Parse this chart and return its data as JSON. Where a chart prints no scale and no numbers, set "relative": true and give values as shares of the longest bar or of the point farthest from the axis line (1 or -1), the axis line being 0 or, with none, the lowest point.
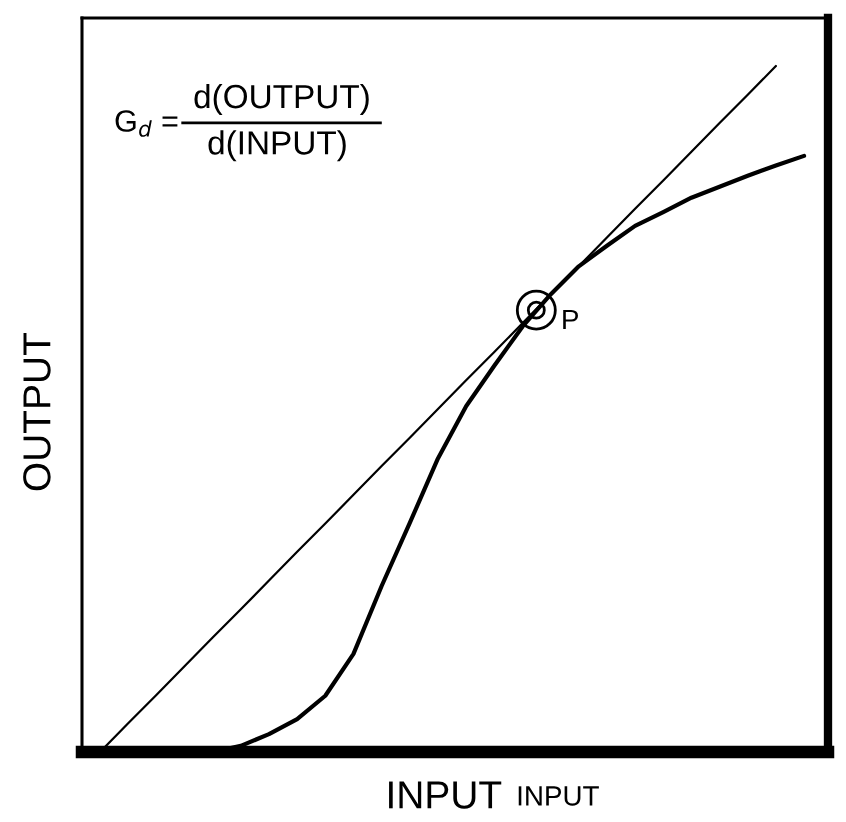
{
  "chart_data": {
    "type": "line",
    "relative": true,
    "xlabel": "INPUT",
    "ylabel": "OUTPUT",
    "categories": [
      null,
      null,
      null,
      null,
      null,
      null,
      null,
      null,
      null,
      null,
      null,
      null,
      null,
      null,
      null,
      null,
      null,
      null,
      null,
      null,
      null,
      null,
      null,
      null,
      null,
      null
    ],
    "series": [
      {
        "color": "#000000",
        "values": [
          0,
          0.042,
          0.083,
          0.125,
          0.167,
          0.208,
          0.25,
          0.292,
          0.333,
          0.375,
          0.417,
          0.458,
          0.5,
          0.542,
          0.583,
          0.625,
          0.667,
          0.708,
          0.75,
          0.792,
          0.833,
          0.875,
          0.917,
          0.958,
          1,
          null
        ]
      },
      {
        "color": "#000000",
        "values": [
          null,
          null,
          null,
          null,
          0,
          0.009,
          0.026,
          0.048,
          0.082,
          0.143,
          0.242,
          0.334,
          0.428,
          0.504,
          0.563,
          0.62,
          0.667,
          0.708,
          0.738,
          0.767,
          0.787,
          0.808,
          0.824,
          0.84,
          0.855,
          0.869
        ]
      }
    ],
    "annotations": [
      "G$_{d}$ =",
      "d(OUTPUT)",
      "d(INPUT)",
      "P",
      "INPUT"
    ]
  }
}
